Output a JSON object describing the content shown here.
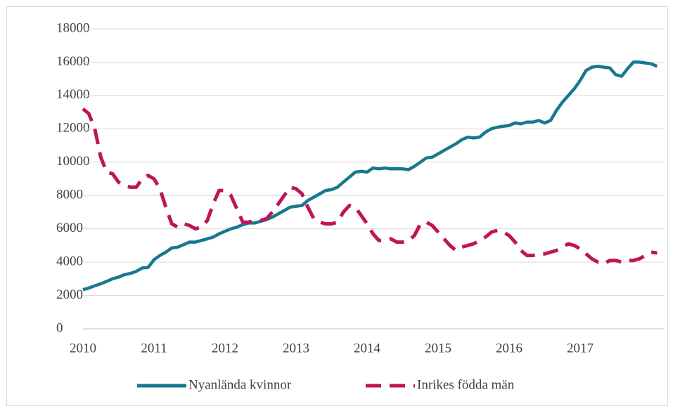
{
  "chart_data": {
    "type": "line",
    "categories": [
      "2010",
      null,
      null,
      null,
      null,
      null,
      null,
      null,
      null,
      null,
      null,
      null,
      "2011",
      null,
      null,
      null,
      null,
      null,
      null,
      null,
      null,
      null,
      null,
      null,
      "2012",
      null,
      null,
      null,
      null,
      null,
      null,
      null,
      null,
      null,
      null,
      null,
      "2013",
      null,
      null,
      null,
      null,
      null,
      null,
      null,
      null,
      null,
      null,
      null,
      "2014",
      null,
      null,
      null,
      null,
      null,
      null,
      null,
      null,
      null,
      null,
      null,
      "2015",
      null,
      null,
      null,
      null,
      null,
      null,
      null,
      null,
      null,
      null,
      null,
      "2016",
      null,
      null,
      null,
      null,
      null,
      null,
      null,
      null,
      null,
      null,
      null,
      "2017",
      null,
      null,
      null,
      null,
      null,
      null,
      null,
      null,
      null,
      null,
      null,
      null,
      null
    ],
    "series": [
      {
        "name": "Nyanlända kvinnor",
        "color": "#17798f",
        "dash": false,
        "values": [
          2350,
          2450,
          2580,
          2700,
          2850,
          3000,
          3100,
          3250,
          3320,
          3450,
          3650,
          3680,
          4150,
          4400,
          4600,
          4850,
          4900,
          5050,
          5200,
          5200,
          5300,
          5400,
          5500,
          5700,
          5850,
          6000,
          6100,
          6250,
          6350,
          6350,
          6450,
          6550,
          6700,
          6900,
          7100,
          7300,
          7350,
          7400,
          7700,
          7900,
          8100,
          8300,
          8350,
          8500,
          8800,
          9100,
          9400,
          9450,
          9400,
          9650,
          9600,
          9650,
          9600,
          9600,
          9600,
          9550,
          9750,
          10000,
          10250,
          10300,
          10500,
          10700,
          10900,
          11100,
          11350,
          11500,
          11450,
          11500,
          11800,
          12000,
          12100,
          12150,
          12200,
          12350,
          12300,
          12400,
          12400,
          12500,
          12350,
          12500,
          13100,
          13600,
          14000,
          14400,
          14900,
          15500,
          15700,
          15750,
          15700,
          15650,
          15250,
          15150,
          15600,
          16000,
          16000,
          15950,
          15900,
          15750
        ]
      },
      {
        "name": "Inrikes födda män",
        "color": "#c0145a",
        "dash": true,
        "values": [
          13200,
          12900,
          12000,
          10300,
          9400,
          9300,
          8800,
          8600,
          8500,
          8500,
          9000,
          9200,
          9000,
          8400,
          7300,
          6300,
          6100,
          6300,
          6200,
          6000,
          6100,
          6500,
          7500,
          8300,
          8300,
          8000,
          7200,
          6400,
          6400,
          6500,
          6500,
          6600,
          7000,
          7500,
          8000,
          8500,
          8400,
          8100,
          7300,
          6600,
          6400,
          6300,
          6300,
          6400,
          7000,
          7400,
          7300,
          6800,
          6300,
          5700,
          5300,
          5300,
          5400,
          5200,
          5200,
          5300,
          5600,
          6300,
          6400,
          6200,
          5800,
          5400,
          5000,
          4700,
          4900,
          5000,
          5100,
          5300,
          5500,
          5800,
          5900,
          5800,
          5600,
          5200,
          4700,
          4400,
          4400,
          4500,
          4500,
          4600,
          4700,
          4900,
          5100,
          5000,
          4800,
          4500,
          4200,
          4000,
          3900,
          4100,
          4100,
          4000,
          4100,
          4100,
          4200,
          4400,
          4600,
          4550
        ]
      }
    ],
    "ylim": [
      0,
      18000
    ],
    "yticks": [
      0,
      2000,
      4000,
      6000,
      8000,
      10000,
      12000,
      14000,
      16000,
      18000
    ],
    "grid": true,
    "legend": "bottom"
  }
}
